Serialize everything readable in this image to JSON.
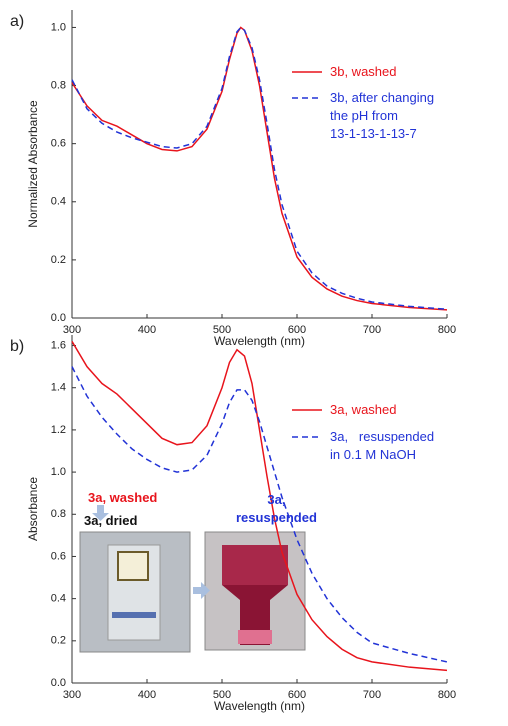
{
  "chart_data": [
    {
      "type": "line",
      "panel_label": "a)",
      "xlabel": "Wavelength (nm)",
      "ylabel": "Normalized Absorbance",
      "x": [
        300,
        320,
        340,
        360,
        380,
        400,
        420,
        440,
        460,
        480,
        500,
        510,
        520,
        525,
        530,
        540,
        550,
        560,
        570,
        580,
        600,
        620,
        640,
        660,
        680,
        700,
        750,
        800
      ],
      "xlim": [
        300,
        800
      ],
      "ylim": [
        0,
        1.06
      ],
      "xticks": [
        300,
        400,
        500,
        600,
        700,
        800
      ],
      "yticks": [
        {
          "value": 0,
          "label": "0.0"
        },
        0.2,
        0.4,
        0.6,
        0.8,
        {
          "value": 1,
          "label": "1.0"
        }
      ],
      "legend": "upper right",
      "series": [
        {
          "name": "3b, washed",
          "color": "#e8141c",
          "linestyle": "solid",
          "values": [
            0.81,
            0.73,
            0.68,
            0.66,
            0.63,
            0.6,
            0.58,
            0.575,
            0.59,
            0.65,
            0.78,
            0.89,
            0.98,
            1.0,
            0.99,
            0.92,
            0.8,
            0.64,
            0.48,
            0.36,
            0.21,
            0.14,
            0.1,
            0.075,
            0.06,
            0.05,
            0.036,
            0.028
          ]
        },
        {
          "name": "3b, after changing\nthe pH from\n13-1-13-1-13-7",
          "color": "#2233d6",
          "linestyle": "dashed",
          "values": [
            0.82,
            0.72,
            0.67,
            0.64,
            0.62,
            0.605,
            0.59,
            0.585,
            0.6,
            0.66,
            0.79,
            0.9,
            0.985,
            1.0,
            0.99,
            0.93,
            0.82,
            0.67,
            0.51,
            0.39,
            0.23,
            0.155,
            0.11,
            0.085,
            0.068,
            0.055,
            0.04,
            0.03
          ]
        }
      ]
    },
    {
      "type": "line",
      "panel_label": "b)",
      "xlabel": "Wavelength (nm)",
      "ylabel": "Absorbance",
      "x": [
        300,
        320,
        340,
        360,
        380,
        400,
        420,
        440,
        460,
        480,
        500,
        510,
        520,
        530,
        540,
        550,
        560,
        570,
        580,
        600,
        620,
        640,
        660,
        680,
        700,
        750,
        800
      ],
      "xlim": [
        300,
        800
      ],
      "ylim": [
        0,
        1.65
      ],
      "xticks": [
        300,
        400,
        500,
        600,
        700,
        800
      ],
      "yticks": [
        {
          "value": 0,
          "label": "0.0"
        },
        0.2,
        0.4,
        0.6,
        0.8,
        {
          "value": 1,
          "label": "1.0"
        },
        1.2,
        1.4,
        1.6
      ],
      "legend": "upper right",
      "series": [
        {
          "name": "3a, washed",
          "color": "#e8141c",
          "linestyle": "solid",
          "values": [
            1.62,
            1.5,
            1.42,
            1.37,
            1.3,
            1.23,
            1.16,
            1.13,
            1.14,
            1.22,
            1.4,
            1.52,
            1.58,
            1.55,
            1.42,
            1.2,
            0.98,
            0.78,
            0.62,
            0.42,
            0.3,
            0.22,
            0.16,
            0.12,
            0.1,
            0.075,
            0.06
          ]
        },
        {
          "name": "3a,   resuspended\nin 0.1 M NaOH",
          "color": "#2233d6",
          "linestyle": "dashed",
          "values": [
            1.5,
            1.36,
            1.26,
            1.18,
            1.11,
            1.06,
            1.02,
            1.0,
            1.01,
            1.08,
            1.23,
            1.33,
            1.39,
            1.39,
            1.34,
            1.24,
            1.12,
            1.0,
            0.88,
            0.68,
            0.52,
            0.4,
            0.31,
            0.24,
            0.19,
            0.14,
            0.1
          ]
        }
      ],
      "annotations": [
        {
          "text": "3a, washed",
          "color": "#e8141c"
        },
        {
          "text": "3a, dried",
          "color": "#111111"
        },
        {
          "text": "3a,\nresuspended",
          "color": "#2233d6"
        }
      ]
    }
  ]
}
